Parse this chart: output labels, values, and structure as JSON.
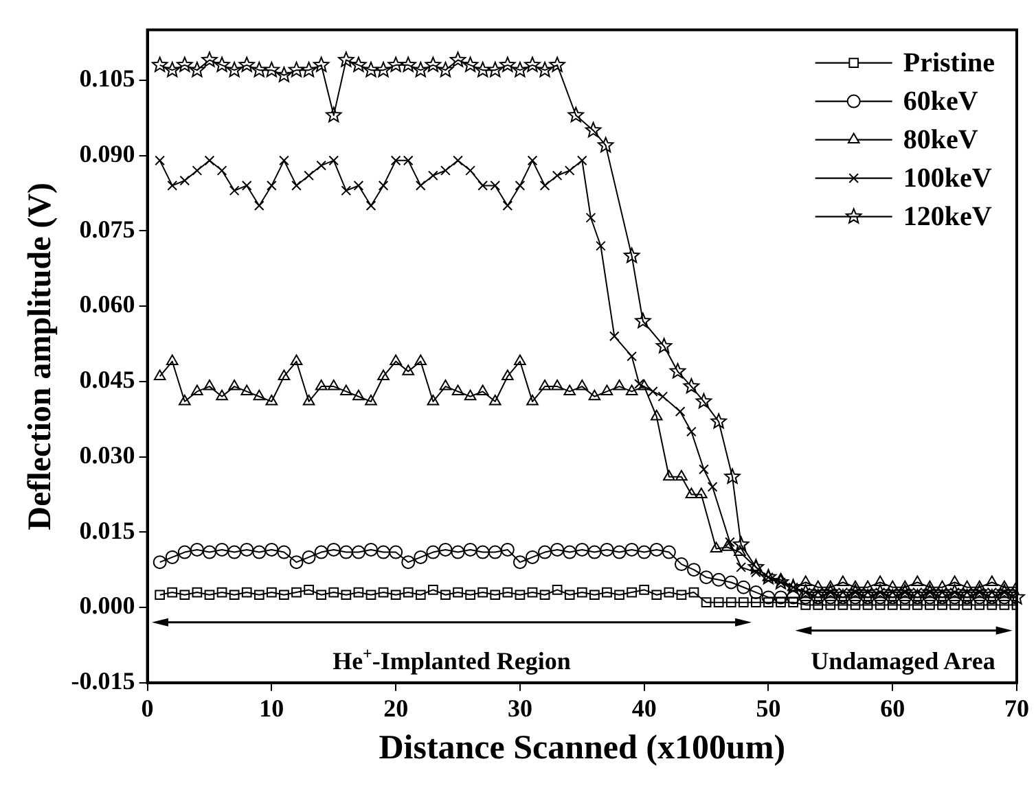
{
  "chart_data": {
    "type": "line",
    "xlabel": "Distance Scanned (x100um)",
    "ylabel": "Deflection amplitude (V)",
    "xlim": [
      0,
      70
    ],
    "xticks": [
      0,
      10,
      20,
      30,
      40,
      50,
      60,
      70
    ],
    "ylim": [
      -0.015,
      0.115
    ],
    "yticks": [
      {
        "value": -0.015,
        "label": "-0.015"
      },
      {
        "value": 0,
        "label": "0.000"
      },
      {
        "value": 0.015,
        "label": "0.015"
      },
      {
        "value": 0.03,
        "label": "0.030"
      },
      {
        "value": 0.045,
        "label": "0.045"
      },
      {
        "value": 0.06,
        "label": "0.060"
      },
      {
        "value": 0.075,
        "label": "0.075"
      },
      {
        "value": 0.09,
        "label": "0.090"
      },
      {
        "value": 0.105,
        "label": "0.105"
      }
    ],
    "grid": false,
    "legend": "top right",
    "line_style": "solid",
    "annotations": [
      "He$^{+}$-Implanted Region",
      "Undamaged Area"
    ],
    "series": [
      {
        "name": "Pristine",
        "color": "#000000",
        "marker": "square",
        "x": [
          1,
          2,
          3,
          4,
          5,
          6,
          7,
          8,
          9,
          10,
          11,
          12,
          13,
          14,
          15,
          16,
          17,
          18,
          19,
          20,
          21,
          22,
          23,
          24,
          25,
          26,
          27,
          28,
          29,
          30,
          31,
          32,
          33,
          34,
          35,
          36,
          37,
          38,
          39,
          40,
          41,
          42,
          43,
          44,
          45,
          46,
          47,
          48,
          49,
          50,
          51,
          52,
          53,
          54,
          55,
          56,
          57,
          58,
          59,
          60,
          61,
          62,
          63,
          64,
          65,
          66,
          67,
          68,
          69,
          70
        ],
        "values": [
          0.0025,
          0.003,
          0.0025,
          0.003,
          0.0025,
          0.003,
          0.0025,
          0.003,
          0.0025,
          0.003,
          0.0025,
          0.003,
          0.0035,
          0.0025,
          0.003,
          0.0025,
          0.003,
          0.0025,
          0.003,
          0.0025,
          0.003,
          0.0025,
          0.0035,
          0.0025,
          0.003,
          0.0025,
          0.003,
          0.0025,
          0.003,
          0.0025,
          0.003,
          0.0025,
          0.0035,
          0.0025,
          0.003,
          0.0025,
          0.003,
          0.0025,
          0.003,
          0.0035,
          0.0025,
          0.003,
          0.0025,
          0.003,
          0.001,
          0.001,
          0.001,
          0.001,
          0.001,
          0.001,
          0.001,
          0.001,
          0.0005,
          0.0005,
          0.0005,
          0.0005,
          0.0005,
          0.0005,
          0.0005,
          0.0005,
          0.0005,
          0.0005,
          0.0005,
          0.0005,
          0.0005,
          0.0005,
          0.0005,
          0.0005,
          0.0005,
          0.0005
        ]
      },
      {
        "name": "60keV",
        "color": "#000000",
        "marker": "circle",
        "x": [
          1,
          2,
          3,
          4,
          5,
          6,
          7,
          8,
          9,
          10,
          11,
          12,
          13,
          14,
          15,
          16,
          17,
          18,
          19,
          20,
          21,
          22,
          23,
          24,
          25,
          26,
          27,
          28,
          29,
          30,
          31,
          32,
          33,
          34,
          35,
          36,
          37,
          38,
          39,
          40,
          41,
          42,
          43,
          44,
          45,
          46,
          47,
          48,
          49,
          50,
          51,
          52,
          53,
          54,
          55,
          56,
          57,
          58,
          59,
          60,
          61,
          62,
          63,
          64,
          65,
          66,
          67,
          68,
          69,
          70
        ],
        "values": [
          0.009,
          0.01,
          0.011,
          0.0115,
          0.011,
          0.0115,
          0.011,
          0.0115,
          0.011,
          0.0115,
          0.011,
          0.009,
          0.01,
          0.011,
          0.0115,
          0.011,
          0.011,
          0.0115,
          0.011,
          0.011,
          0.009,
          0.01,
          0.011,
          0.0115,
          0.011,
          0.0115,
          0.011,
          0.011,
          0.0115,
          0.009,
          0.01,
          0.011,
          0.0115,
          0.011,
          0.0115,
          0.011,
          0.0115,
          0.011,
          0.0115,
          0.011,
          0.0115,
          0.011,
          0.0086,
          0.0075,
          0.006,
          0.0055,
          0.005,
          0.004,
          0.003,
          0.002,
          0.002,
          0.002,
          0.002,
          0.002,
          0.002,
          0.002,
          0.002,
          0.002,
          0.002,
          0.002,
          0.002,
          0.002,
          0.002,
          0.002,
          0.002,
          0.002,
          0.002,
          0.002,
          0.002,
          0.002
        ]
      },
      {
        "name": "80keV",
        "color": "#000000",
        "marker": "triangle",
        "x": [
          1,
          2,
          3,
          4,
          5,
          6,
          7,
          8,
          9,
          10,
          11,
          12,
          13,
          14,
          15,
          16,
          17,
          18,
          19,
          20,
          21,
          22,
          23,
          24,
          25,
          26,
          27,
          28,
          29,
          30,
          31,
          32,
          33,
          34,
          35,
          36,
          37,
          38,
          39,
          40,
          41,
          42,
          43,
          43.8,
          44.6,
          45.8,
          46.7,
          47.7,
          49,
          50,
          51,
          52,
          53,
          54,
          55,
          56,
          57,
          58,
          59,
          60,
          61,
          62,
          63,
          64,
          65,
          66,
          67,
          68,
          69,
          70
        ],
        "values": [
          0.046,
          0.049,
          0.041,
          0.043,
          0.044,
          0.042,
          0.044,
          0.043,
          0.042,
          0.041,
          0.046,
          0.049,
          0.041,
          0.044,
          0.044,
          0.043,
          0.042,
          0.041,
          0.046,
          0.049,
          0.047,
          0.049,
          0.041,
          0.044,
          0.043,
          0.042,
          0.043,
          0.041,
          0.046,
          0.049,
          0.041,
          0.044,
          0.044,
          0.043,
          0.044,
          0.042,
          0.043,
          0.044,
          0.043,
          0.044,
          0.038,
          0.026,
          0.026,
          0.0225,
          0.0225,
          0.0117,
          0.012,
          0.011,
          0.008,
          0.006,
          0.0055,
          0.004,
          0.005,
          0.004,
          0.004,
          0.005,
          0.004,
          0.004,
          0.005,
          0.004,
          0.004,
          0.005,
          0.004,
          0.004,
          0.005,
          0.004,
          0.004,
          0.005,
          0.004,
          0.004
        ]
      },
      {
        "name": "100keV",
        "color": "#000000",
        "marker": "cross",
        "x": [
          1,
          2,
          3,
          4,
          5,
          6,
          7,
          8,
          9,
          10,
          11,
          12,
          13,
          14,
          15,
          16,
          17,
          18,
          19,
          20,
          21,
          22,
          23,
          24,
          25,
          26,
          27,
          28,
          29,
          30,
          31,
          32,
          33,
          34,
          35,
          35.7,
          36.5,
          37.6,
          39,
          39.6,
          40.7,
          41.5,
          42.9,
          43.8,
          44.8,
          45.5,
          46.9,
          47.8,
          49,
          50,
          51,
          52,
          53,
          54,
          55,
          56,
          57,
          58,
          59,
          60,
          61,
          62,
          63,
          64,
          65,
          66,
          67,
          68,
          69,
          70
        ],
        "values": [
          0.089,
          0.084,
          0.085,
          0.087,
          0.089,
          0.087,
          0.083,
          0.084,
          0.08,
          0.084,
          0.089,
          0.084,
          0.086,
          0.088,
          0.089,
          0.083,
          0.084,
          0.08,
          0.084,
          0.089,
          0.089,
          0.084,
          0.086,
          0.087,
          0.089,
          0.087,
          0.084,
          0.084,
          0.08,
          0.084,
          0.089,
          0.084,
          0.086,
          0.087,
          0.089,
          0.0776,
          0.072,
          0.054,
          0.05,
          0.0445,
          0.043,
          0.042,
          0.039,
          0.035,
          0.0275,
          0.024,
          0.013,
          0.008,
          0.007,
          0.006,
          0.005,
          0.004,
          0.003,
          0.003,
          0.003,
          0.003,
          0.003,
          0.003,
          0.003,
          0.003,
          0.003,
          0.003,
          0.003,
          0.003,
          0.003,
          0.003,
          0.003,
          0.003,
          0.003,
          0.003
        ]
      },
      {
        "name": "120keV",
        "color": "#000000",
        "marker": "star",
        "x": [
          1,
          2,
          3,
          4,
          5,
          6,
          7,
          8,
          9,
          10,
          11,
          12,
          13,
          14,
          15,
          16,
          17,
          18,
          19,
          20,
          21,
          22,
          23,
          24,
          25,
          26,
          27,
          28,
          29,
          30,
          31,
          32,
          33,
          34.5,
          35.9,
          36.9,
          39,
          39.9,
          41.6,
          42.7,
          43.8,
          44.8,
          46,
          47.1,
          47.8,
          49,
          50,
          51,
          52,
          53,
          54,
          55,
          56,
          57,
          58,
          59,
          60,
          61,
          62,
          63,
          64,
          65,
          66,
          67,
          68,
          69,
          70
        ],
        "values": [
          0.108,
          0.107,
          0.108,
          0.107,
          0.109,
          0.108,
          0.107,
          0.108,
          0.107,
          0.107,
          0.106,
          0.107,
          0.107,
          0.108,
          0.098,
          0.109,
          0.108,
          0.107,
          0.107,
          0.108,
          0.108,
          0.107,
          0.108,
          0.107,
          0.109,
          0.108,
          0.107,
          0.107,
          0.108,
          0.107,
          0.108,
          0.107,
          0.108,
          0.098,
          0.095,
          0.092,
          0.07,
          0.057,
          0.052,
          0.047,
          0.044,
          0.041,
          0.037,
          0.026,
          0.0125,
          0.008,
          0.006,
          0.005,
          0.004,
          0.003,
          0.002,
          0.003,
          0.002,
          0.003,
          0.002,
          0.003,
          0.002,
          0.003,
          0.002,
          0.003,
          0.002,
          0.003,
          0.002,
          0.003,
          0.002,
          0.003,
          0.002
        ]
      }
    ]
  }
}
